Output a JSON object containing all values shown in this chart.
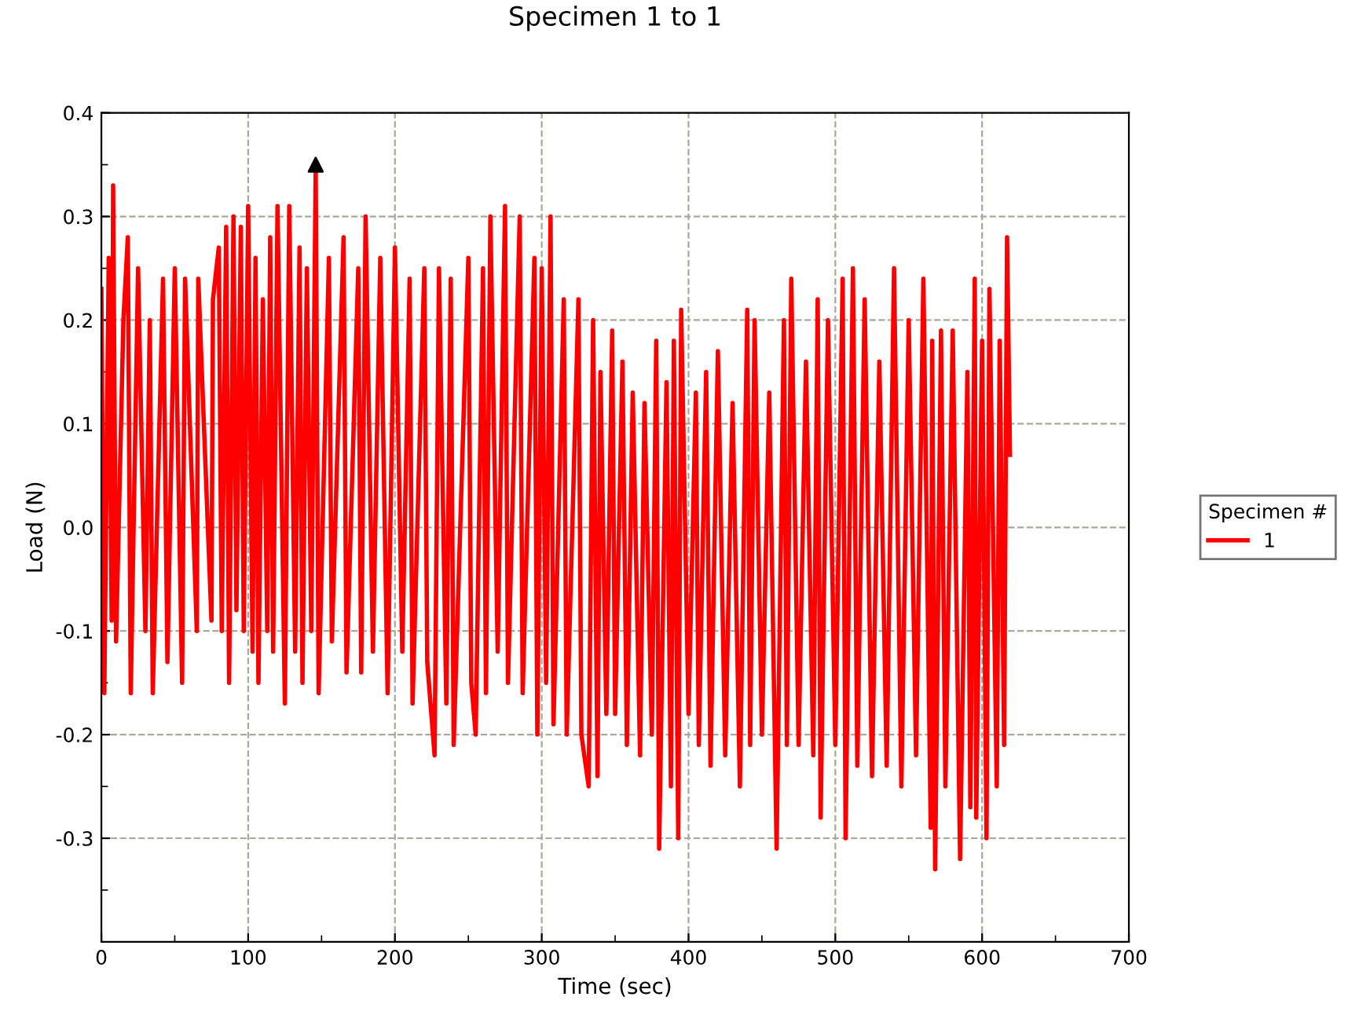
{
  "chart_data": {
    "type": "line",
    "title": "Specimen 1 to 1",
    "xlabel": "Time (sec)",
    "ylabel": "Load (N)",
    "legend_title": "Specimen #",
    "legend": "right",
    "grid": true,
    "xlim": [
      0,
      700
    ],
    "ylim": [
      -0.4,
      0.4
    ],
    "xticks": [
      0,
      {
        "value": 50,
        "label": null
      },
      100,
      {
        "value": 150,
        "label": null
      },
      200,
      {
        "value": 250,
        "label": null
      },
      300,
      {
        "value": 350,
        "label": null
      },
      400,
      {
        "value": 450,
        "label": null
      },
      500,
      {
        "value": 550,
        "label": null
      },
      600,
      {
        "value": 650,
        "label": null
      },
      700
    ],
    "yticks": [
      {
        "value": -0.4,
        "label": null
      },
      {
        "value": -0.35,
        "label": null
      },
      -0.3,
      {
        "value": -0.25,
        "label": null
      },
      -0.2,
      {
        "value": -0.15,
        "label": null
      },
      -0.1,
      {
        "value": -0.05,
        "label": null
      },
      {
        "value": 0,
        "label": "0.0"
      },
      {
        "value": 0.05,
        "label": null
      },
      0.1,
      {
        "value": 0.15,
        "label": null
      },
      0.2,
      {
        "value": 0.25,
        "label": null
      },
      0.3,
      {
        "value": 0.35,
        "label": null
      },
      0.4
    ],
    "series": [
      {
        "name": "1",
        "color": "#ff0000",
        "marker": "none",
        "line_style": "solid",
        "x": [
          0,
          2,
          5,
          7,
          8,
          10,
          15,
          18,
          20,
          25,
          30,
          33,
          35,
          42,
          45,
          50,
          55,
          57,
          65,
          66,
          75,
          76,
          80,
          82,
          85,
          87,
          90,
          92,
          95,
          97,
          100,
          103,
          105,
          107,
          110,
          113,
          115,
          117,
          120,
          125,
          128,
          132,
          135,
          137,
          140,
          143,
          146,
          148,
          155,
          157,
          165,
          167,
          175,
          177,
          180,
          185,
          190,
          195,
          200,
          205,
          210,
          212,
          220,
          222,
          227,
          230,
          235,
          238,
          240,
          250,
          252,
          255,
          260,
          262,
          265,
          270,
          275,
          277,
          285,
          287,
          295,
          297,
          300,
          303,
          306,
          308,
          315,
          317,
          325,
          327,
          332,
          335,
          338,
          340,
          344,
          348,
          350,
          355,
          358,
          362,
          367,
          370,
          375,
          378,
          380,
          385,
          388,
          390,
          393,
          395,
          400,
          405,
          407,
          412,
          415,
          420,
          425,
          430,
          435,
          440,
          442,
          445,
          450,
          455,
          460,
          465,
          467,
          470,
          475,
          480,
          485,
          488,
          490,
          495,
          500,
          505,
          507,
          512,
          515,
          520,
          525,
          530,
          535,
          540,
          545,
          550,
          555,
          560,
          565,
          566,
          568,
          572,
          575,
          580,
          585,
          590,
          592,
          595,
          596,
          600,
          603,
          605,
          610,
          612,
          615,
          617,
          619
        ],
        "values": [
          0.23,
          -0.16,
          0.26,
          -0.09,
          0.33,
          -0.11,
          0.2,
          0.28,
          -0.16,
          0.25,
          -0.1,
          0.2,
          -0.16,
          0.24,
          -0.13,
          0.25,
          -0.15,
          0.24,
          -0.1,
          0.24,
          -0.09,
          0.22,
          0.27,
          -0.1,
          0.29,
          -0.15,
          0.3,
          -0.08,
          0.29,
          -0.1,
          0.31,
          -0.12,
          0.26,
          -0.15,
          0.22,
          -0.1,
          0.28,
          -0.12,
          0.31,
          -0.17,
          0.31,
          -0.12,
          0.27,
          -0.15,
          0.25,
          -0.1,
          0.345,
          -0.16,
          0.26,
          -0.11,
          0.28,
          -0.14,
          0.25,
          -0.14,
          0.3,
          -0.12,
          0.26,
          -0.16,
          0.27,
          -0.12,
          0.24,
          -0.17,
          0.25,
          -0.13,
          -0.22,
          0.25,
          -0.17,
          0.24,
          -0.21,
          0.26,
          -0.15,
          -0.2,
          0.25,
          -0.16,
          0.3,
          -0.12,
          0.31,
          -0.15,
          0.3,
          -0.16,
          0.26,
          -0.2,
          0.25,
          -0.15,
          0.3,
          -0.19,
          0.22,
          -0.2,
          0.22,
          -0.2,
          -0.25,
          0.2,
          -0.24,
          0.15,
          -0.18,
          0.19,
          -0.18,
          0.16,
          -0.21,
          0.13,
          -0.22,
          0.12,
          -0.2,
          0.18,
          -0.31,
          0.14,
          -0.25,
          0.18,
          -0.3,
          0.21,
          -0.18,
          0.13,
          -0.21,
          0.15,
          -0.23,
          0.17,
          -0.22,
          0.12,
          -0.25,
          0.21,
          -0.21,
          0.2,
          -0.2,
          0.13,
          -0.31,
          0.2,
          -0.21,
          0.24,
          -0.21,
          0.16,
          -0.22,
          0.22,
          -0.28,
          0.2,
          -0.21,
          0.24,
          -0.3,
          0.25,
          -0.23,
          0.22,
          -0.24,
          0.16,
          -0.23,
          0.25,
          -0.25,
          0.2,
          -0.22,
          0.24,
          -0.29,
          0.18,
          -0.33,
          0.19,
          -0.25,
          0.19,
          -0.32,
          0.15,
          -0.27,
          0.24,
          -0.28,
          0.18,
          -0.3,
          0.23,
          -0.25,
          0.18,
          -0.21,
          0.28,
          0.07
        ]
      },
      {
        "color": "#000000",
        "type": "scatter",
        "marker": "triangle",
        "x": [
          146
        ],
        "values": [
          0.35
        ]
      }
    ]
  }
}
